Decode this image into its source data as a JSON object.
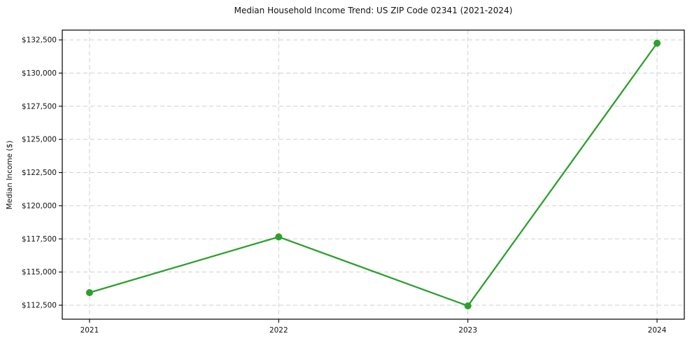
{
  "chart_data": {
    "type": "line",
    "title": "Median Household Income Trend: US ZIP Code 02341 (2021-2024)",
    "xlabel": "",
    "ylabel": "Median Income ($)",
    "x": [
      2021,
      2022,
      2023,
      2024
    ],
    "categories": [
      "2021",
      "2022",
      "2023",
      "2024"
    ],
    "series": [
      {
        "name": "Median Income ($)",
        "values": [
          113450,
          117650,
          112450,
          132250
        ]
      }
    ],
    "yticks": [
      112500,
      115000,
      117500,
      120000,
      122500,
      125000,
      127500,
      130000,
      132500
    ],
    "ytick_labels": [
      "$112,500",
      "$115,000",
      "$117,500",
      "$120,000",
      "$122,500",
      "$125,000",
      "$127,500",
      "$130,000",
      "$132,500"
    ],
    "xlim": [
      2020.856,
      2024.144
    ],
    "ylim": [
      111445,
      133240
    ],
    "grid": true,
    "legend_position": "none",
    "line_color": "#2ca02c",
    "marker": "circle",
    "marker_color": "#2ca02c",
    "background": "#ffffff",
    "grid_color": "#cfcfcf",
    "spine_color": "#000000"
  }
}
